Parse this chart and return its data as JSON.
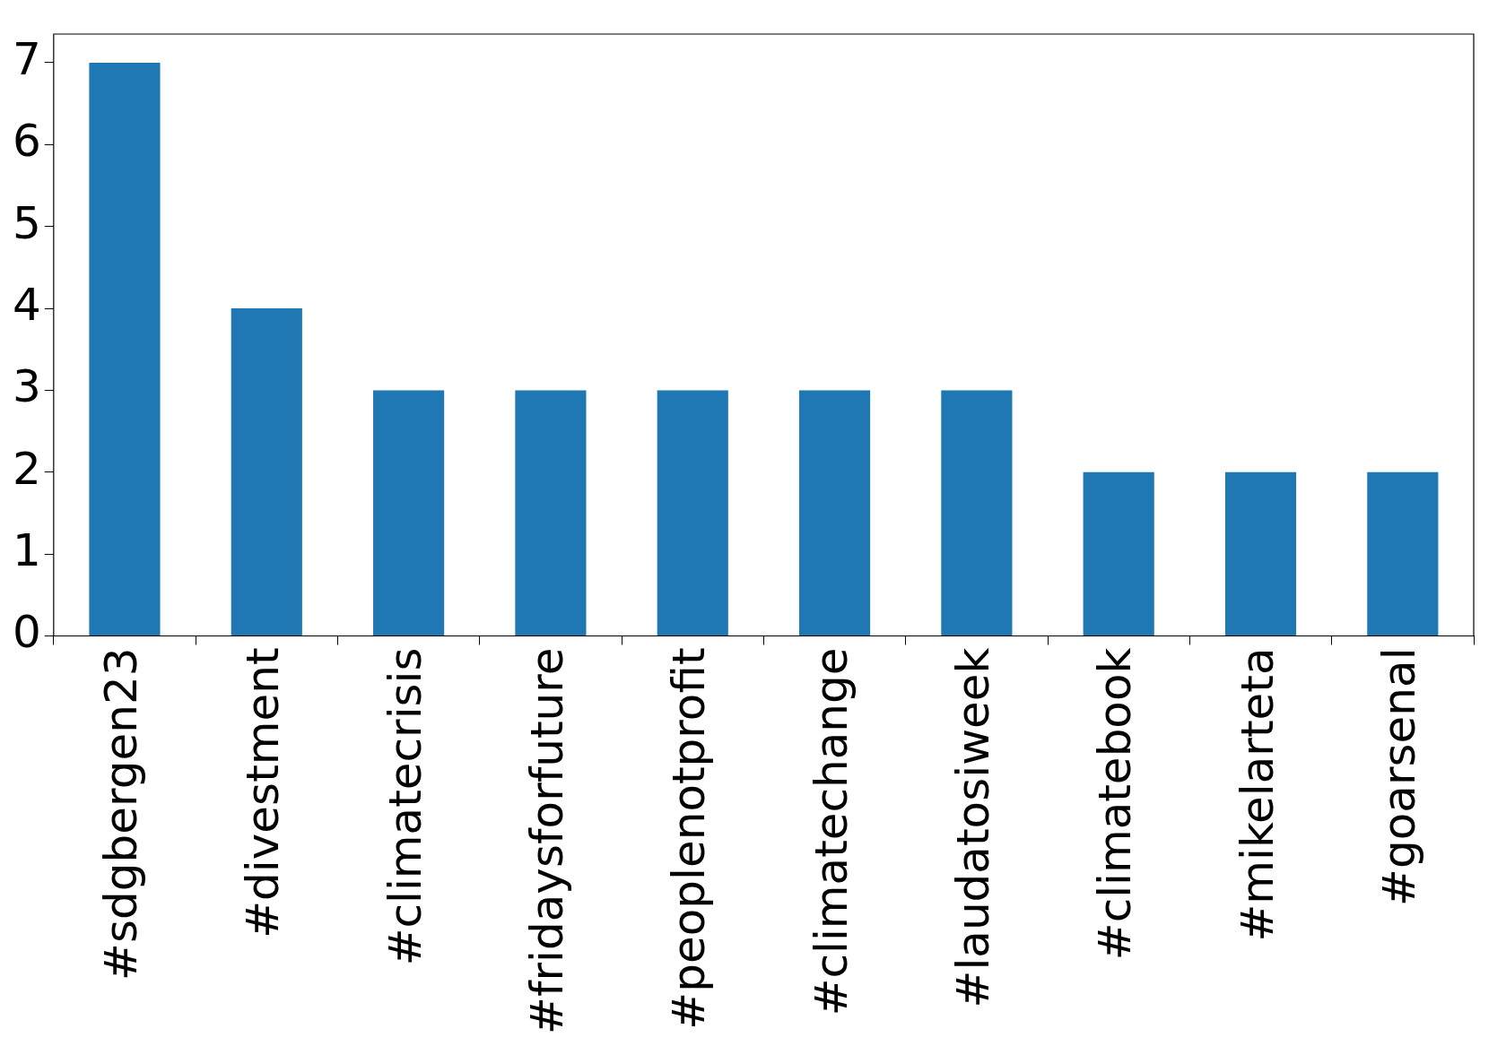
{
  "chart_data": {
    "type": "bar",
    "categories": [
      "#sdgbergen23",
      "#divestment",
      "#climatecrisis",
      "#fridaysforfuture",
      "#peoplenotprofit",
      "#climatechange",
      "#laudatosiweek",
      "#climatebook",
      "#mikelarteta",
      "#goarsenal"
    ],
    "values": [
      7,
      4,
      3,
      3,
      3,
      3,
      3,
      2,
      2,
      2
    ],
    "color": "#1f77b4",
    "ylim": [
      0,
      7.35
    ],
    "yticks": [
      0,
      1,
      2,
      3,
      4,
      5,
      6,
      7
    ],
    "grid": false,
    "legend": false
  }
}
